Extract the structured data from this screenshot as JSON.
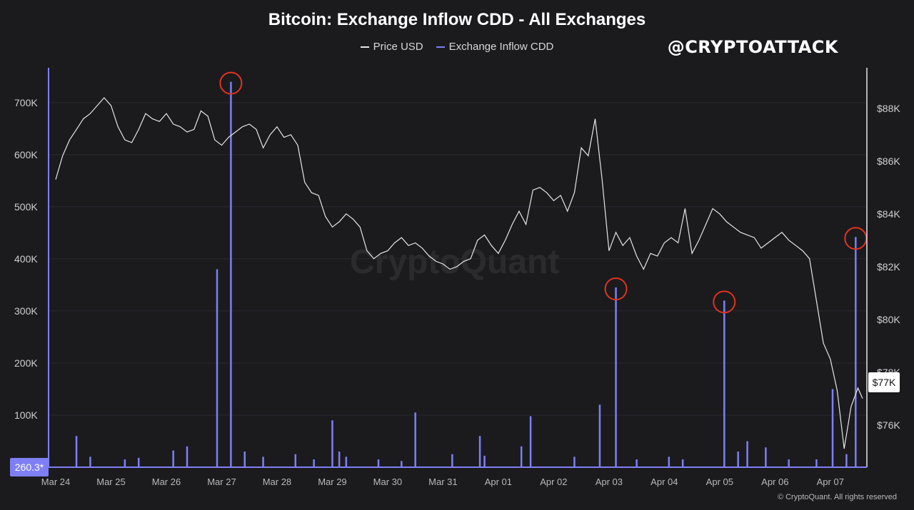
{
  "colors": {
    "background": "#1b1b1e",
    "price_line": "#e6e6e6",
    "cdd_series": "#7f7ff5",
    "highlight_circle": "#e0331f",
    "gridline": "#2a2a30"
  },
  "watermark": "@CRYPTOATTACK",
  "brand_watermark": "CryptoQuant",
  "copyright": "© CryptoQuant. All rights reserved",
  "legend": [
    {
      "label": "Price USD",
      "color": "#e6e6e6"
    },
    {
      "label": "Exchange Inflow CDD",
      "color": "#7f7ff5"
    }
  ],
  "chart_data": {
    "type": "line",
    "title": "Bitcoin: Exchange Inflow CDD - All Exchanges",
    "x_ticks": [
      "Mar 24",
      "Mar 25",
      "Mar 26",
      "Mar 27",
      "Mar 28",
      "Mar 29",
      "Mar 30",
      "Mar 31",
      "Apr 01",
      "Apr 02",
      "Apr 03",
      "Apr 04",
      "Apr 05",
      "Apr 06",
      "Apr 07"
    ],
    "x_range": [
      "2025-03-24",
      "2025-04-07T14:00"
    ],
    "left_axis": {
      "series": "Exchange Inflow CDD",
      "ylim": [
        0,
        760000
      ],
      "ticks": [
        100000,
        200000,
        300000,
        400000,
        500000,
        600000,
        700000
      ],
      "tick_labels": [
        "100K",
        "200K",
        "300K",
        "400K",
        "500K",
        "600K",
        "700K"
      ],
      "current_value_label": "260.3*"
    },
    "right_axis": {
      "series": "Price USD",
      "ylim": [
        74400,
        89400
      ],
      "ticks": [
        76000,
        78000,
        80000,
        82000,
        84000,
        86000,
        88000
      ],
      "tick_labels": [
        "$76K",
        "$78K",
        "$80K",
        "$82K",
        "$84K",
        "$86K",
        "$88K"
      ],
      "current_value_label": "$77K"
    },
    "series": [
      {
        "name": "Price USD",
        "axis": "right",
        "points": [
          [
            "2025-03-24T00:00",
            85300
          ],
          [
            "2025-03-24T03:00",
            86200
          ],
          [
            "2025-03-24T06:00",
            86800
          ],
          [
            "2025-03-24T09:00",
            87200
          ],
          [
            "2025-03-24T12:00",
            87600
          ],
          [
            "2025-03-24T15:00",
            87800
          ],
          [
            "2025-03-24T18:00",
            88100
          ],
          [
            "2025-03-24T21:00",
            88400
          ],
          [
            "2025-03-25T00:00",
            88100
          ],
          [
            "2025-03-25T03:00",
            87300
          ],
          [
            "2025-03-25T06:00",
            86800
          ],
          [
            "2025-03-25T09:00",
            86700
          ],
          [
            "2025-03-25T12:00",
            87200
          ],
          [
            "2025-03-25T15:00",
            87800
          ],
          [
            "2025-03-25T18:00",
            87600
          ],
          [
            "2025-03-25T21:00",
            87500
          ],
          [
            "2025-03-26T00:00",
            87800
          ],
          [
            "2025-03-26T03:00",
            87400
          ],
          [
            "2025-03-26T06:00",
            87300
          ],
          [
            "2025-03-26T09:00",
            87100
          ],
          [
            "2025-03-26T12:00",
            87200
          ],
          [
            "2025-03-26T15:00",
            87900
          ],
          [
            "2025-03-26T18:00",
            87700
          ],
          [
            "2025-03-26T21:00",
            86800
          ],
          [
            "2025-03-27T00:00",
            86600
          ],
          [
            "2025-03-27T03:00",
            86900
          ],
          [
            "2025-03-27T06:00",
            87100
          ],
          [
            "2025-03-27T09:00",
            87300
          ],
          [
            "2025-03-27T12:00",
            87400
          ],
          [
            "2025-03-27T15:00",
            87200
          ],
          [
            "2025-03-27T18:00",
            86500
          ],
          [
            "2025-03-27T21:00",
            87000
          ],
          [
            "2025-03-28T00:00",
            87300
          ],
          [
            "2025-03-28T03:00",
            86900
          ],
          [
            "2025-03-28T06:00",
            87000
          ],
          [
            "2025-03-28T09:00",
            86600
          ],
          [
            "2025-03-28T12:00",
            85200
          ],
          [
            "2025-03-28T15:00",
            84800
          ],
          [
            "2025-03-28T18:00",
            84700
          ],
          [
            "2025-03-28T21:00",
            83900
          ],
          [
            "2025-03-29T00:00",
            83500
          ],
          [
            "2025-03-29T03:00",
            83700
          ],
          [
            "2025-03-29T06:00",
            84000
          ],
          [
            "2025-03-29T09:00",
            83800
          ],
          [
            "2025-03-29T12:00",
            83500
          ],
          [
            "2025-03-29T15:00",
            82600
          ],
          [
            "2025-03-29T18:00",
            82300
          ],
          [
            "2025-03-29T21:00",
            82500
          ],
          [
            "2025-03-30T00:00",
            82600
          ],
          [
            "2025-03-30T03:00",
            82900
          ],
          [
            "2025-03-30T06:00",
            83100
          ],
          [
            "2025-03-30T09:00",
            82800
          ],
          [
            "2025-03-30T12:00",
            82900
          ],
          [
            "2025-03-30T15:00",
            82700
          ],
          [
            "2025-03-30T18:00",
            82400
          ],
          [
            "2025-03-30T21:00",
            82200
          ],
          [
            "2025-03-31T00:00",
            82100
          ],
          [
            "2025-03-31T03:00",
            81900
          ],
          [
            "2025-03-31T06:00",
            82000
          ],
          [
            "2025-03-31T09:00",
            82200
          ],
          [
            "2025-03-31T12:00",
            82300
          ],
          [
            "2025-03-31T15:00",
            83000
          ],
          [
            "2025-03-31T18:00",
            83200
          ],
          [
            "2025-03-31T21:00",
            82800
          ],
          [
            "2025-04-01T00:00",
            82500
          ],
          [
            "2025-04-01T03:00",
            83000
          ],
          [
            "2025-04-01T06:00",
            83600
          ],
          [
            "2025-04-01T09:00",
            84100
          ],
          [
            "2025-04-01T12:00",
            83600
          ],
          [
            "2025-04-01T15:00",
            84900
          ],
          [
            "2025-04-01T18:00",
            85000
          ],
          [
            "2025-04-01T21:00",
            84800
          ],
          [
            "2025-04-02T00:00",
            84500
          ],
          [
            "2025-04-02T03:00",
            84700
          ],
          [
            "2025-04-02T06:00",
            84100
          ],
          [
            "2025-04-02T09:00",
            84800
          ],
          [
            "2025-04-02T12:00",
            86500
          ],
          [
            "2025-04-02T15:00",
            86200
          ],
          [
            "2025-04-02T18:00",
            87600
          ],
          [
            "2025-04-02T21:00",
            85300
          ],
          [
            "2025-04-03T00:00",
            82600
          ],
          [
            "2025-04-03T03:00",
            83300
          ],
          [
            "2025-04-03T06:00",
            82800
          ],
          [
            "2025-04-03T09:00",
            83100
          ],
          [
            "2025-04-03T12:00",
            82400
          ],
          [
            "2025-04-03T15:00",
            81900
          ],
          [
            "2025-04-03T18:00",
            82500
          ],
          [
            "2025-04-03T21:00",
            82400
          ],
          [
            "2025-04-04T00:00",
            82900
          ],
          [
            "2025-04-04T03:00",
            83100
          ],
          [
            "2025-04-04T06:00",
            82900
          ],
          [
            "2025-04-04T09:00",
            84200
          ],
          [
            "2025-04-04T12:00",
            82500
          ],
          [
            "2025-04-04T15:00",
            83000
          ],
          [
            "2025-04-04T18:00",
            83600
          ],
          [
            "2025-04-04T21:00",
            84200
          ],
          [
            "2025-04-05T00:00",
            84000
          ],
          [
            "2025-04-05T03:00",
            83700
          ],
          [
            "2025-04-05T06:00",
            83500
          ],
          [
            "2025-04-05T09:00",
            83300
          ],
          [
            "2025-04-05T12:00",
            83200
          ],
          [
            "2025-04-05T15:00",
            83100
          ],
          [
            "2025-04-05T18:00",
            82700
          ],
          [
            "2025-04-05T21:00",
            82900
          ],
          [
            "2025-04-06T00:00",
            83100
          ],
          [
            "2025-04-06T03:00",
            83300
          ],
          [
            "2025-04-06T06:00",
            83000
          ],
          [
            "2025-04-06T09:00",
            82800
          ],
          [
            "2025-04-06T12:00",
            82600
          ],
          [
            "2025-04-06T15:00",
            82300
          ],
          [
            "2025-04-06T18:00",
            80700
          ],
          [
            "2025-04-06T21:00",
            79100
          ],
          [
            "2025-04-07T00:00",
            78500
          ],
          [
            "2025-04-07T03:00",
            77300
          ],
          [
            "2025-04-07T06:00",
            75100
          ],
          [
            "2025-04-07T09:00",
            76700
          ],
          [
            "2025-04-07T12:00",
            77400
          ],
          [
            "2025-04-07T14:00",
            77000
          ]
        ]
      },
      {
        "name": "Exchange Inflow CDD",
        "axis": "left",
        "spikes": [
          [
            "2025-03-24T09:00",
            60000
          ],
          [
            "2025-03-24T15:00",
            20000
          ],
          [
            "2025-03-25T06:00",
            15000
          ],
          [
            "2025-03-25T12:00",
            18000
          ],
          [
            "2025-03-26T03:00",
            32000
          ],
          [
            "2025-03-26T09:00",
            40000
          ],
          [
            "2025-03-26T22:00",
            380000
          ],
          [
            "2025-03-27T04:00",
            740000
          ],
          [
            "2025-03-27T10:00",
            30000
          ],
          [
            "2025-03-27T18:00",
            20000
          ],
          [
            "2025-03-28T08:00",
            25000
          ],
          [
            "2025-03-28T16:00",
            15000
          ],
          [
            "2025-03-29T00:00",
            90000
          ],
          [
            "2025-03-29T03:00",
            30000
          ],
          [
            "2025-03-29T06:00",
            20000
          ],
          [
            "2025-03-29T20:00",
            15000
          ],
          [
            "2025-03-30T06:00",
            12000
          ],
          [
            "2025-03-30T12:00",
            105000
          ],
          [
            "2025-03-31T04:00",
            25000
          ],
          [
            "2025-03-31T16:00",
            60000
          ],
          [
            "2025-03-31T18:00",
            22000
          ],
          [
            "2025-04-01T10:00",
            40000
          ],
          [
            "2025-04-01T14:00",
            98000
          ],
          [
            "2025-04-02T09:00",
            20000
          ],
          [
            "2025-04-02T20:00",
            120000
          ],
          [
            "2025-04-03T03:00",
            345000
          ],
          [
            "2025-04-03T12:00",
            15000
          ],
          [
            "2025-04-04T02:00",
            20000
          ],
          [
            "2025-04-04T08:00",
            15000
          ],
          [
            "2025-04-05T02:00",
            320000
          ],
          [
            "2025-04-05T08:00",
            30000
          ],
          [
            "2025-04-05T12:00",
            50000
          ],
          [
            "2025-04-05T20:00",
            38000
          ],
          [
            "2025-04-06T06:00",
            15000
          ],
          [
            "2025-04-06T18:00",
            15000
          ],
          [
            "2025-04-07T01:00",
            150000
          ],
          [
            "2025-04-07T07:00",
            25000
          ],
          [
            "2025-04-07T11:00",
            442000
          ]
        ]
      }
    ],
    "highlighted_peaks": [
      "2025-03-27T04:00",
      "2025-04-03T03:00",
      "2025-04-05T02:00",
      "2025-04-07T11:00"
    ]
  }
}
